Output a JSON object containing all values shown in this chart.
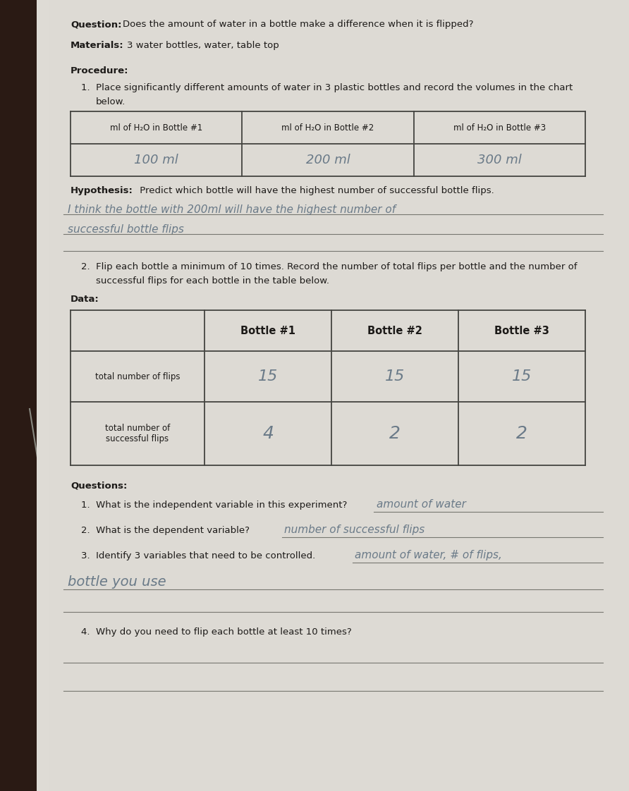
{
  "bg_color": "#c8c5bf",
  "paper_color": "#dddad4",
  "dark_left_color": "#2a1a14",
  "question_bold": "Question:",
  "question_rest": " Does the amount of water in a bottle make a difference when it is flipped?",
  "materials_bold": "Materials:",
  "materials_rest": " 3 water bottles, water, table top",
  "procedure_bold": "Procedure:",
  "proc1": "1.  Place significantly different amounts of water in 3 plastic bottles and record the volumes in the chart",
  "proc1b": "     below.",
  "table1_headers": [
    "ml of H₂O in Bottle #1",
    "ml of H₂O in Bottle #2",
    "ml of H₂O in Bottle #3"
  ],
  "table1_values": [
    "100 ml",
    "200 ml",
    "300 ml"
  ],
  "hypothesis_bold": "Hypothesis:",
  "hypothesis_rest": " Predict which bottle will have the highest number of successful bottle flips.",
  "hyp_line1": "I think the bottle with 200ml will have the highest number of",
  "hyp_line2": "successful bottle flips",
  "proc2": "2.  Flip each bottle a minimum of 10 times. Record the number of total flips per bottle and the number of",
  "proc2b": "     successful flips for each bottle in the table below.",
  "data_bold": "Data:",
  "table2_col_headers": [
    "Bottle #1",
    "Bottle #2",
    "Bottle #3"
  ],
  "table2_row1_label": "total number of flips",
  "table2_row2_label": "total number of\nsuccessful flips",
  "table2_row1_vals": [
    "15",
    "15",
    "15"
  ],
  "table2_row2_vals": [
    "4",
    "2",
    "2"
  ],
  "questions_bold": "Questions:",
  "q1": "1.  What is the independent variable in this experiment?",
  "q1_ans": "amount of water",
  "q2": "2.  What is the dependent variable?",
  "q2_ans": "number of successful flips",
  "q3": "3.  Identify 3 variables that need to be controlled.",
  "q3_ans1": "amount of water, # of flips,",
  "q3_ans2": "bottle you use",
  "q4": "4.  Why do you need to flip each bottle at least 10 times?",
  "font_color": "#1c1a18",
  "hand_color": "#6a7a88",
  "table_border": "#444440",
  "underline_color": "#777770",
  "line_color": "#888882"
}
